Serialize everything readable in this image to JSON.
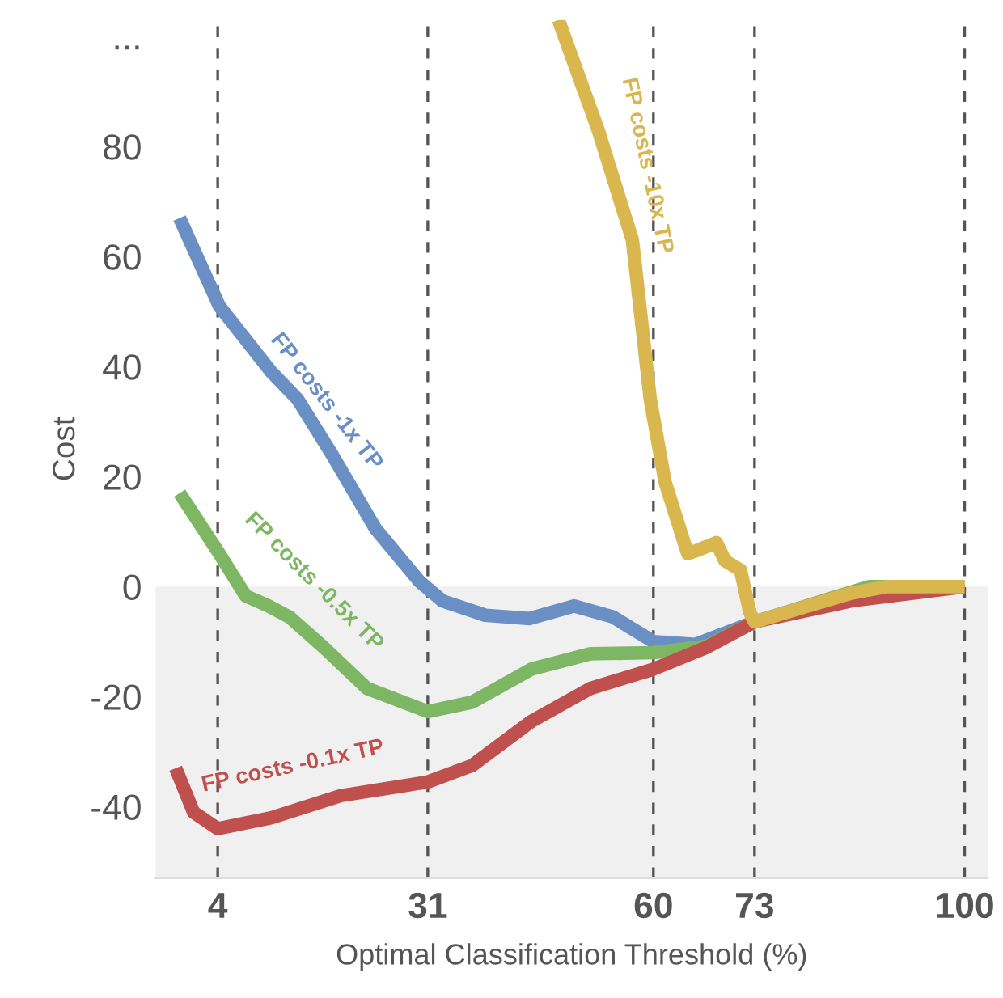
{
  "chart_data": {
    "type": "line",
    "xlabel": "Optimal Classification Threshold (%)",
    "ylabel": "Cost",
    "xlim": [
      -4,
      103
    ],
    "ylim": [
      -53,
      103
    ],
    "xticks": [
      4,
      31,
      60,
      73,
      100
    ],
    "yticks": [
      -40,
      -20,
      0,
      20,
      40,
      60,
      80,
      {
        "value": 100,
        "label": "..."
      }
    ],
    "grid": false,
    "marker": "none",
    "line_style": "solid",
    "series": [
      {
        "color": "#6a8fc4",
        "x": [
          -0.9,
          4.2,
          10.9,
          14.3,
          18.7,
          24.3,
          29.9,
          32.9,
          38.4,
          44.1,
          49.8,
          54.8,
          60,
          65.4,
          73,
          80.7
        ],
        "values": [
          67,
          51,
          39,
          34,
          24,
          10.5,
          1,
          -2.6,
          -5.2,
          -5.8,
          -3.5,
          -5.5,
          -10,
          -10.5,
          -6.4,
          -3.5
        ]
      },
      {
        "color": "#7db764",
        "x": [
          -0.9,
          4.2,
          7.6,
          10.5,
          13.2,
          17.6,
          23.2,
          31,
          36.7,
          44.3,
          51.9,
          60,
          66.9,
          73,
          87.7,
          100
        ],
        "values": [
          17,
          6,
          -1.7,
          -3.5,
          -5.5,
          -11,
          -18.5,
          -22.7,
          -21,
          -15,
          -12.2,
          -12,
          -10.8,
          -6.4,
          0,
          0
        ]
      },
      {
        "color": "#c0504d",
        "x": [
          -1.4,
          0.9,
          4,
          10.9,
          19.8,
          31,
          36.7,
          44.3,
          51.9,
          60,
          66.9,
          73,
          85.4,
          100
        ],
        "values": [
          -33,
          -41,
          -44,
          -42,
          -38,
          -35.5,
          -32.5,
          -24.5,
          -18.5,
          -15,
          -11,
          -6.4,
          -2.6,
          0
        ]
      },
      {
        "color": "#d9b64e",
        "x": [
          47.8,
          52.9,
          57.3,
          59.6,
          61.5,
          64.4,
          65.8,
          68.1,
          69.2,
          71.2,
          72.4,
          73,
          85.4,
          90,
          100
        ],
        "values": [
          103,
          83,
          63,
          34,
          19,
          6,
          6.7,
          8,
          4.7,
          3,
          -4.7,
          -6.4,
          -1.2,
          0,
          0
        ]
      }
    ],
    "bands": [
      {
        "axis": "y",
        "from": -53,
        "to": 0,
        "color": "#f0f0f0"
      }
    ],
    "ref_lines": [
      {
        "axis": "x",
        "value": 4,
        "color": "#555555",
        "line_style": "dashed"
      },
      {
        "axis": "x",
        "value": 31,
        "color": "#555555",
        "line_style": "dashed"
      },
      {
        "axis": "x",
        "value": 60,
        "color": "#555555",
        "line_style": "dashed"
      },
      {
        "axis": "x",
        "value": 73,
        "color": "#555555",
        "line_style": "dashed"
      },
      {
        "axis": "x",
        "value": 100,
        "color": "#555555",
        "line_style": "dashed"
      }
    ],
    "annotations": [
      "FP costs -1x TP",
      "FP costs -0.5x TP",
      "FP costs -0.1x TP",
      "FP costs -10x TP"
    ]
  }
}
